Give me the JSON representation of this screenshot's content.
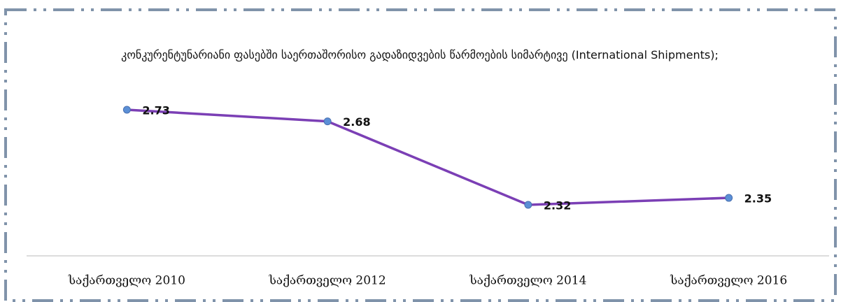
{
  "chart_data": {
    "type": "line",
    "title": "კონკურენტუნარიანი ფასებში საერთაშორისო გადაზიდვების წარმოების სიმარტივე (International Shipments);",
    "categories": [
      "საქართველო 2010",
      "საქართველო 2012",
      "საქართველო 2014",
      "საქართველო 2016"
    ],
    "series": [
      {
        "name": "International Shipments",
        "color": "#7b3fb5",
        "marker_color": "#5b8fd6",
        "values": [
          2.73,
          2.68,
          2.32,
          2.35
        ]
      }
    ]
  }
}
